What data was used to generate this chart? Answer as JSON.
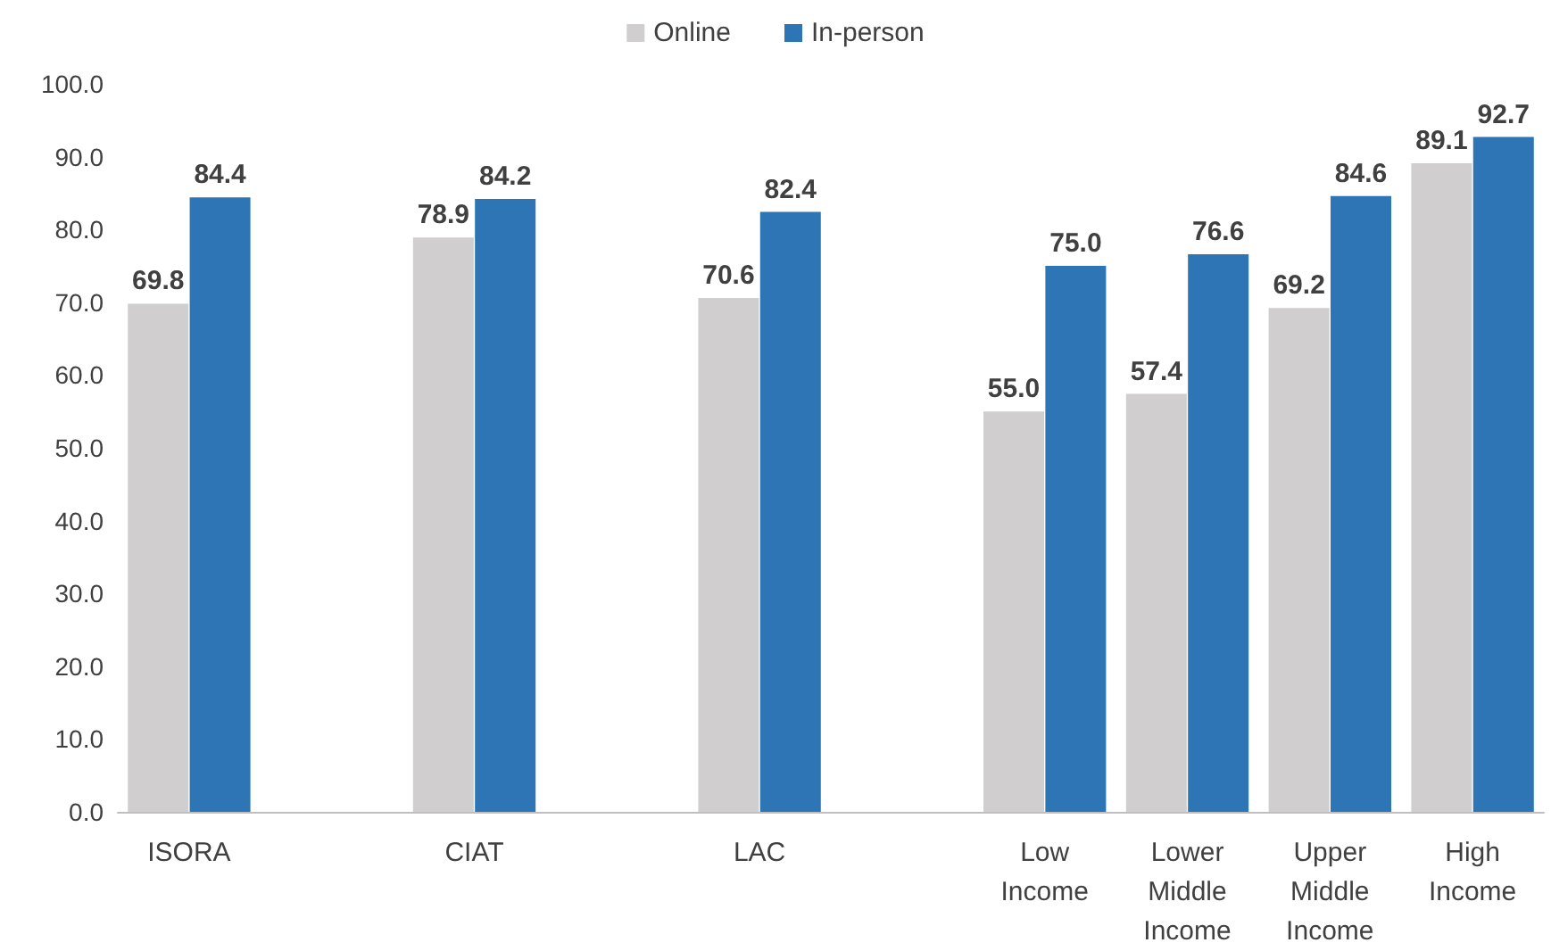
{
  "chart_data": {
    "type": "bar",
    "categories": [
      "ISORA",
      null,
      "CIAT",
      null,
      "LAC",
      null,
      "Low Income",
      "Lower Middle Income",
      "Upper Middle Income",
      "High Income"
    ],
    "series": [
      {
        "name": "Online",
        "color": "#d0cece",
        "values": [
          69.8,
          null,
          78.9,
          null,
          70.6,
          null,
          55.0,
          57.4,
          69.2,
          89.1
        ],
        "value_labels": [
          "69.8",
          null,
          "78.9",
          null,
          "70.6",
          null,
          "55.0",
          "57.4",
          "69.2",
          "89.1"
        ]
      },
      {
        "name": "In-person",
        "color": "#2e75b6",
        "values": [
          84.4,
          null,
          84.2,
          null,
          82.4,
          null,
          75.0,
          76.6,
          84.6,
          92.7
        ],
        "value_labels": [
          "84.4",
          null,
          "84.2",
          null,
          "82.4",
          null,
          "75.0",
          "76.6",
          "84.6",
          "92.7"
        ]
      }
    ],
    "ylim": [
      0,
      100
    ],
    "yticks": [
      {
        "value": 0,
        "label": "0.0"
      },
      {
        "value": 10,
        "label": "10.0"
      },
      {
        "value": 20,
        "label": "20.0"
      },
      {
        "value": 30,
        "label": "30.0"
      },
      {
        "value": 40,
        "label": "40.0"
      },
      {
        "value": 50,
        "label": "50.0"
      },
      {
        "value": 60,
        "label": "60.0"
      },
      {
        "value": 70,
        "label": "70.0"
      },
      {
        "value": 80,
        "label": "80.0"
      },
      {
        "value": 90,
        "label": "90.0"
      },
      {
        "value": 100,
        "label": "100.0"
      }
    ],
    "legend": "top",
    "grid": false
  }
}
